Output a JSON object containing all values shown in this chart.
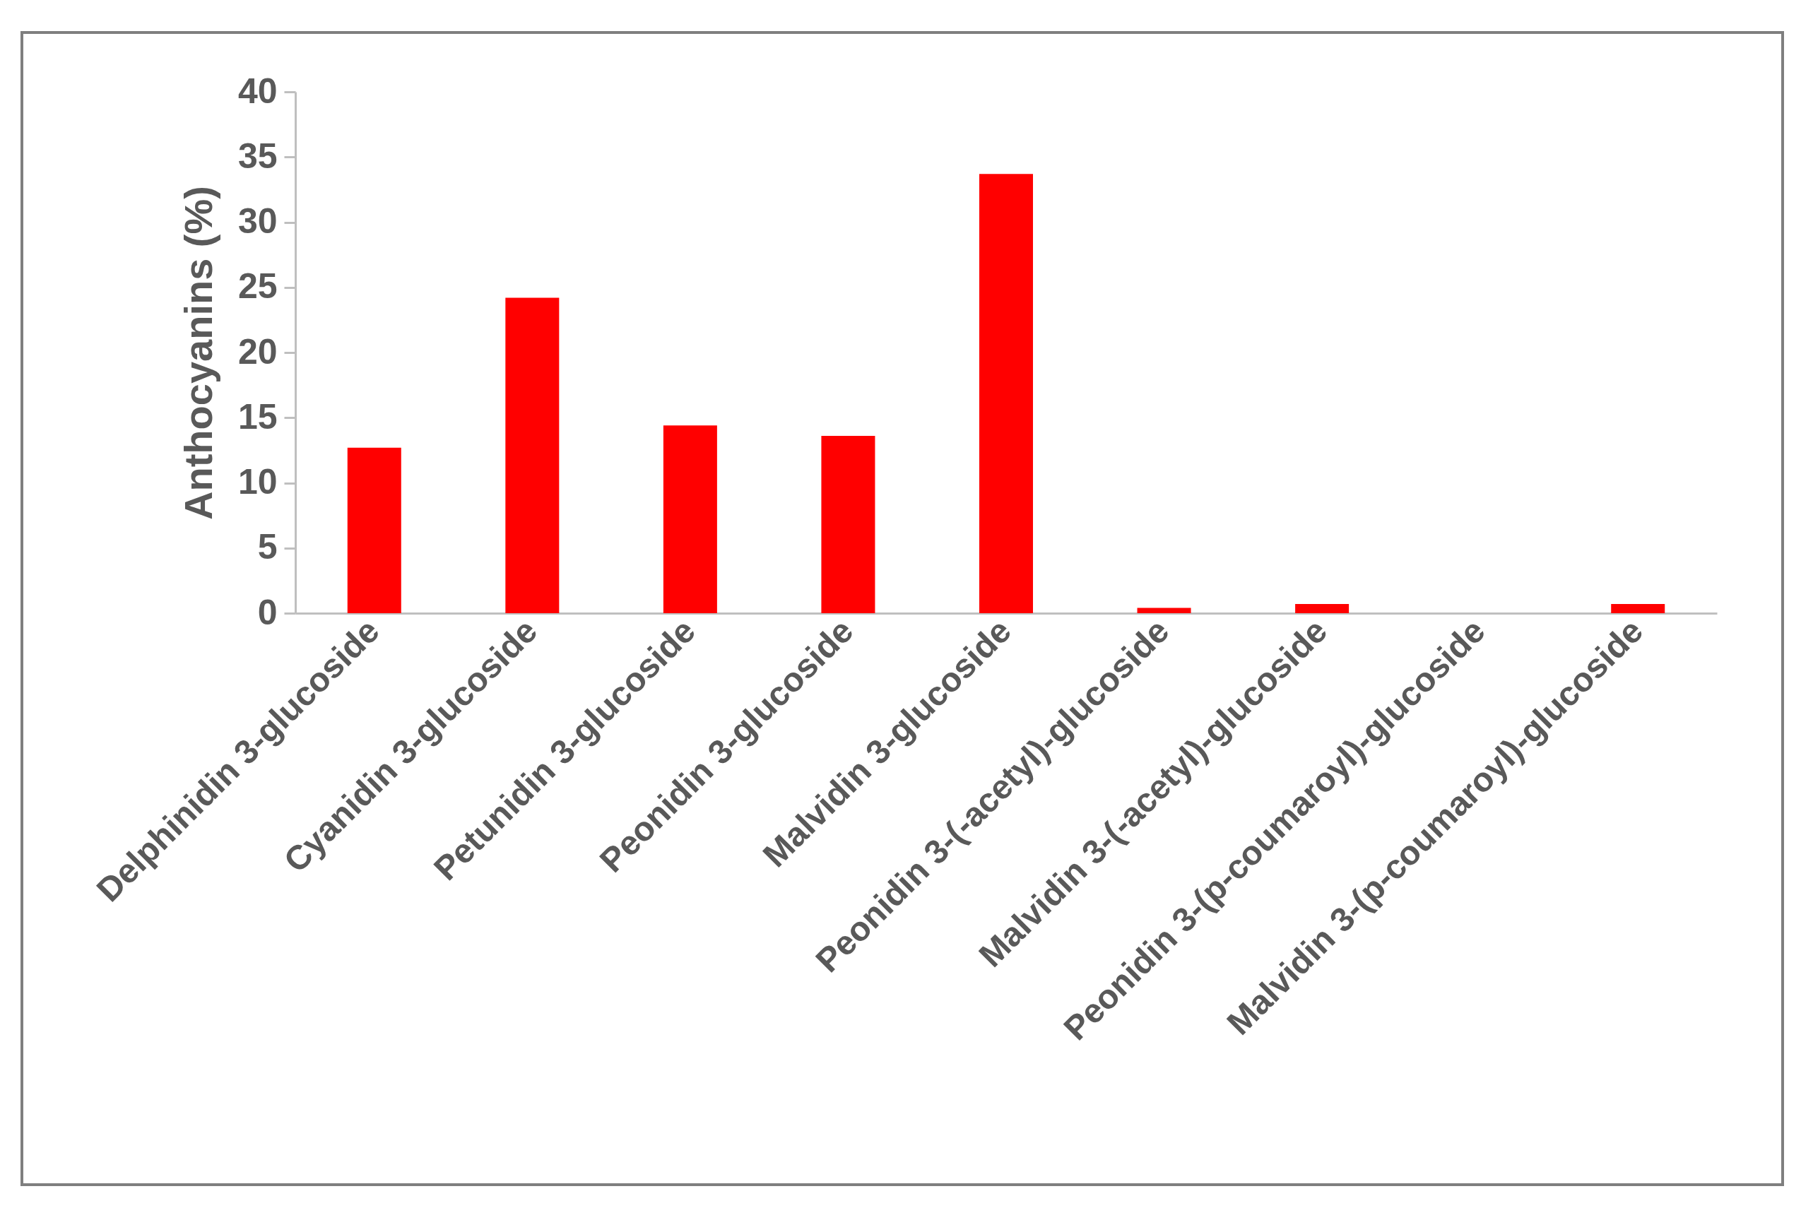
{
  "chart_data": {
    "type": "bar",
    "ylabel": "Anthocyanins (%)",
    "categories": [
      "Delphinidin 3-glucoside",
      "Cyanidin 3-glucoside",
      "Petunidin 3-glucoside",
      "Peonidin 3-glucoside",
      "Malvidin 3-glucoside",
      "Peonidin 3-(-acetyl)-glucoside",
      "Malvidin 3-(-acetyl)-glucoside",
      "Peonidin 3-(p-coumaroyl)-glucoside",
      "Malvidin 3-(p-coumaroyl)-glucoside"
    ],
    "values": [
      12.7,
      24.2,
      14.4,
      13.6,
      33.7,
      0.4,
      0.7,
      0,
      0.7
    ],
    "color": "#ff0000",
    "ylim": [
      0,
      40
    ],
    "yticks": [
      0,
      5,
      10,
      15,
      20,
      25,
      30,
      35,
      40
    ],
    "grid": false
  }
}
